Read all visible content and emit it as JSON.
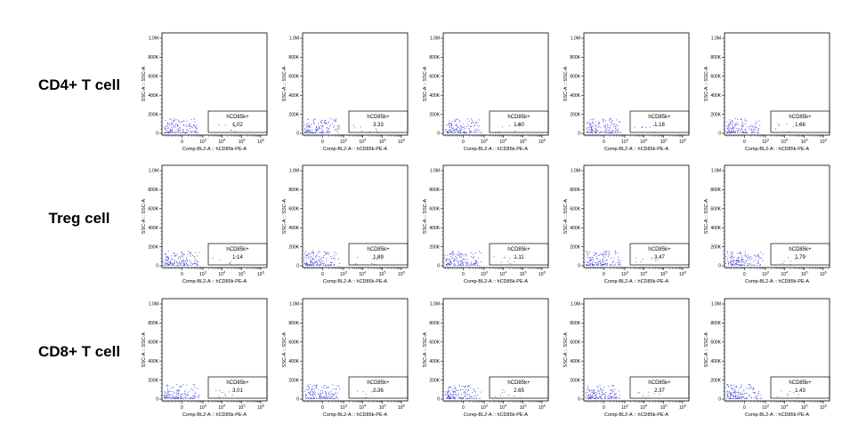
{
  "figure": {
    "row_labels": [
      "CD4+ T cell",
      "Treg cell",
      "CD8+ T cell"
    ]
  },
  "chart_data": {
    "type": "scatter",
    "xlabel": "Comp-BL2-A :: hCD85k-PE-A",
    "ylabel": "SSC-A :: SSC-A",
    "xaxis": {
      "scale": "biexponential",
      "tick_labels": [
        "0",
        "10^3",
        "10^4",
        "10^5",
        "10^6"
      ]
    },
    "yaxis": {
      "scale": "linear",
      "range": [
        0,
        1000000
      ],
      "tick_labels": [
        "0",
        "200K",
        "400K",
        "600K",
        "800K",
        "1.0M"
      ]
    },
    "gate_label": "hCD85k+",
    "point_color": "#3a3ad6",
    "gate_percentages": [
      [
        "1.02",
        "3.33",
        "1.60",
        "1.18",
        "1.66"
      ],
      [
        "1.14",
        "1.89",
        "1.11",
        "3.47",
        "1.79"
      ],
      [
        "3.01",
        "2.36",
        "2.65",
        "2.37",
        "1.43"
      ]
    ],
    "grid": false,
    "legend": "none"
  }
}
